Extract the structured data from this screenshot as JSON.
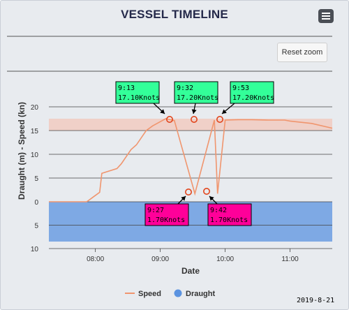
{
  "title": "VESSEL TIMELINE",
  "reset_zoom_label": "Reset zoom",
  "menu_icon": "hamburger-menu-icon",
  "date_stamp": "2019-8-21",
  "colors": {
    "speed": "#f0956e",
    "draught": "#5b93e0",
    "upper_band": "#f3c4b8",
    "annotation_up": "#33ff99",
    "annotation_down": "#ff0099"
  },
  "chart_data": {
    "type": "line",
    "xlabel": "Date",
    "ylabel": "Draught (m) - Speed (kn)",
    "x_ticks": [
      "08:00",
      "09:00",
      "10:00",
      "11:00"
    ],
    "x_tick_minutes": [
      480,
      540,
      600,
      660
    ],
    "xlim_minutes": [
      437,
      699
    ],
    "ylim_top": [
      0,
      20
    ],
    "ylim_bottom": [
      0,
      10
    ],
    "y_ticks_top": [
      "20",
      "15",
      "10",
      "5",
      "0"
    ],
    "y_ticks_bottom": [
      "5",
      "10"
    ],
    "speed_band": [
      15.2,
      17.5
    ],
    "draught_band": [
      0,
      8.3
    ],
    "series": [
      {
        "name": "Speed",
        "points_minutes": [
          437,
          455,
          472,
          478,
          484,
          486,
          500,
          504,
          510,
          513,
          518,
          524,
          527,
          533,
          537,
          545,
          553,
          572,
          590,
          593,
          600,
          612,
          625,
          640,
          650,
          655,
          660,
          680,
          699
        ],
        "points_values": [
          0,
          0,
          0,
          1,
          2,
          6,
          7,
          8,
          10,
          11,
          12,
          14,
          15,
          16,
          16.5,
          17.5,
          17.1,
          1.7,
          17.2,
          1.7,
          17.2,
          17.3,
          17.3,
          17.2,
          17.2,
          17.2,
          17.0,
          16.5,
          15.5
        ]
      },
      {
        "name": "Draught",
        "value": 8.3
      }
    ],
    "annotations": [
      {
        "time": "9:13",
        "speed": "17.10Knots",
        "x_minutes": 553,
        "y_value": 17.1,
        "kind": "peak"
      },
      {
        "time": "9:27",
        "speed": "1.70Knots",
        "x_minutes": 572,
        "y_value": 1.7,
        "kind": "dip"
      },
      {
        "time": "9:32",
        "speed": "17.20Knots",
        "x_minutes": 577,
        "y_value": 17.2,
        "kind": "peak"
      },
      {
        "time": "9:42",
        "speed": "1.70Knots",
        "x_minutes": 587,
        "y_value": 1.7,
        "kind": "dip"
      },
      {
        "time": "9:53",
        "speed": "17.20Knots",
        "x_minutes": 598,
        "y_value": 17.2,
        "kind": "peak"
      }
    ],
    "legend": [
      "Speed",
      "Draught"
    ],
    "legend_position": "bottom-center"
  }
}
